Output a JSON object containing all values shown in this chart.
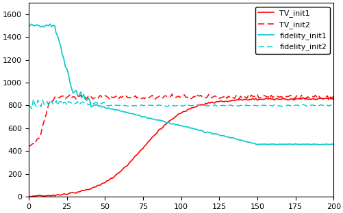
{
  "xlim": [
    0,
    200
  ],
  "ylim": [
    0,
    1700
  ],
  "yticks": [
    0,
    200,
    400,
    600,
    800,
    1000,
    1200,
    1400,
    1600
  ],
  "xticks": [
    0,
    25,
    50,
    75,
    100,
    125,
    150,
    175,
    200
  ],
  "legend_labels": [
    "TV_init1",
    "TV_init2",
    "fidelity_init1",
    "fidelity_init2"
  ],
  "red_color": "#ff0000",
  "cyan_color": "#00c8c8",
  "figsize": [
    5.02,
    3.12
  ],
  "dpi": 100
}
